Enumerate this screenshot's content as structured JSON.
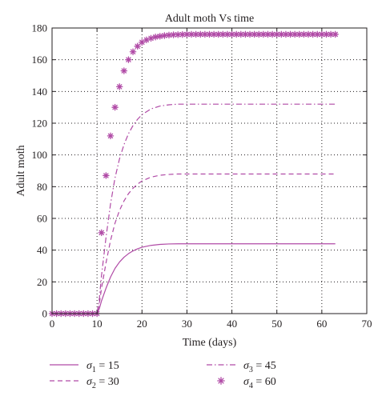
{
  "chart_data": {
    "type": "line",
    "title": "Adult moth Vs time",
    "xlabel": "Time (days)",
    "ylabel": "Adult moth",
    "xlim": [
      0,
      70
    ],
    "ylim": [
      0,
      180
    ],
    "xticks": [
      0,
      10,
      20,
      30,
      40,
      50,
      60,
      70
    ],
    "yticks": [
      0,
      20,
      40,
      60,
      80,
      100,
      120,
      140,
      160,
      180
    ],
    "grid": true,
    "legend_position": "bottom",
    "color": "#b04aa6",
    "series": [
      {
        "name": "σ1 = 15",
        "symbol": "σ",
        "subscript": "1",
        "value_text": " = 15",
        "style": "solid",
        "x": [
          0,
          10,
          10.5,
          11,
          12,
          13,
          14,
          15,
          16,
          17,
          18,
          19,
          20,
          22,
          24,
          26,
          28,
          30,
          35,
          40,
          50,
          63
        ],
        "y": [
          0,
          0,
          3,
          8,
          16,
          23,
          28.5,
          32.5,
          35.5,
          37.8,
          39.5,
          40.8,
          41.8,
          43,
          43.6,
          43.9,
          44,
          44,
          44,
          44,
          44,
          44
        ]
      },
      {
        "name": "σ2 = 30",
        "symbol": "σ",
        "subscript": "2",
        "value_text": " = 30",
        "style": "dashed",
        "x": [
          0,
          10,
          10.5,
          11,
          12,
          13,
          14,
          15,
          16,
          17,
          18,
          19,
          20,
          22,
          24,
          26,
          28,
          30,
          35,
          40,
          50,
          63
        ],
        "y": [
          0,
          0,
          6,
          16,
          32,
          46,
          57,
          65,
          71,
          75.6,
          79,
          81.6,
          83.6,
          86,
          87.2,
          87.7,
          88,
          88,
          88,
          88,
          88,
          88
        ]
      },
      {
        "name": "σ3 = 45",
        "symbol": "σ",
        "subscript": "3",
        "value_text": " = 45",
        "style": "dashdot",
        "x": [
          0,
          10,
          10.5,
          11,
          12,
          13,
          14,
          15,
          16,
          17,
          18,
          19,
          20,
          22,
          24,
          26,
          28,
          30,
          35,
          40,
          50,
          63
        ],
        "y": [
          0,
          0,
          9,
          24,
          48,
          69,
          85.5,
          97.5,
          106.5,
          113.4,
          118.5,
          122.4,
          125.4,
          129,
          130.8,
          131.6,
          132,
          132,
          132,
          132,
          132,
          132
        ]
      },
      {
        "name": "σ4 = 60",
        "symbol": "σ",
        "subscript": "4",
        "value_text": " = 60",
        "style": "asterisk",
        "x": [
          0,
          1,
          2,
          3,
          4,
          5,
          6,
          7,
          8,
          9,
          10,
          11,
          12,
          13,
          14,
          15,
          16,
          17,
          18,
          19,
          20,
          21,
          22,
          23,
          24,
          25,
          26,
          27,
          28,
          29,
          30,
          31,
          32,
          33,
          34,
          35,
          36,
          37,
          38,
          39,
          40,
          41,
          42,
          43,
          44,
          45,
          46,
          47,
          48,
          49,
          50,
          51,
          52,
          53,
          54,
          55,
          56,
          57,
          58,
          59,
          60,
          61,
          62,
          63
        ],
        "y": [
          0,
          0,
          0,
          0,
          0,
          0,
          0,
          0,
          0,
          0,
          0,
          51,
          87,
          112,
          130,
          143,
          153,
          160,
          165,
          168.5,
          171,
          172.5,
          173.5,
          174.3,
          174.8,
          175.2,
          175.5,
          175.7,
          175.8,
          175.9,
          176,
          176,
          176,
          176,
          176,
          176,
          176,
          176,
          176,
          176,
          176,
          176,
          176,
          176,
          176,
          176,
          176,
          176,
          176,
          176,
          176,
          176,
          176,
          176,
          176,
          176,
          176,
          176,
          176,
          176,
          176,
          176,
          176,
          176
        ]
      }
    ]
  }
}
